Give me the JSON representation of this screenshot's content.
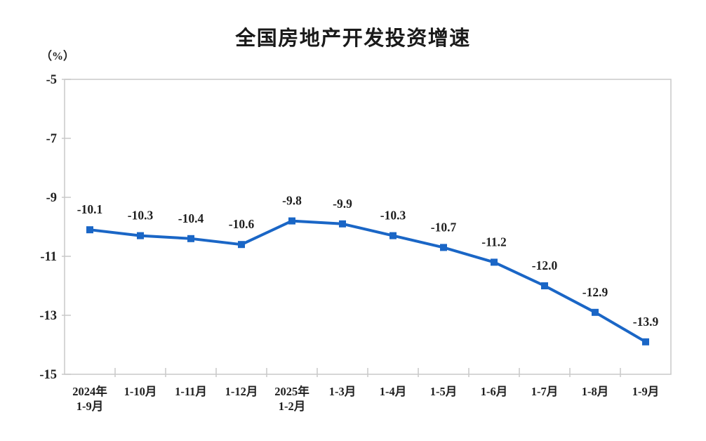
{
  "chart_data": {
    "type": "line",
    "title": "全国房地产开发投资增速",
    "unit_label": "（%）",
    "categories": [
      "2024年\n1-9月",
      "1-10月",
      "1-11月",
      "1-12月",
      "2025年\n1-2月",
      "1-3月",
      "1-4月",
      "1-5月",
      "1-6月",
      "1-7月",
      "1-8月",
      "1-9月"
    ],
    "values": [
      -10.1,
      -10.3,
      -10.4,
      -10.6,
      -9.8,
      -9.9,
      -10.3,
      -10.7,
      -11.2,
      -12.0,
      -12.9,
      -13.9
    ],
    "point_labels": [
      "-10.1",
      "-10.3",
      "-10.4",
      "-10.6",
      "-9.8",
      "-9.9",
      "-10.3",
      "-10.7",
      "-11.2",
      "-12.0",
      "-12.9",
      "-13.9"
    ],
    "y_ticks": [
      -5,
      -7,
      -9,
      -11,
      -13,
      -15
    ],
    "y_tick_labels": [
      "-5",
      "-7",
      "-9",
      "-11",
      "-13",
      "-15"
    ],
    "ylim": [
      -15,
      -5
    ],
    "grid": false,
    "legend": "none",
    "marker": "square",
    "colors": {
      "line": "#1A66C6",
      "marker": "#1A66C6",
      "axis": "#C8C8C8",
      "tick_text": "#1F1F1F",
      "data_label": "#1F1F1F",
      "title_text": "#1A1A1A"
    }
  }
}
